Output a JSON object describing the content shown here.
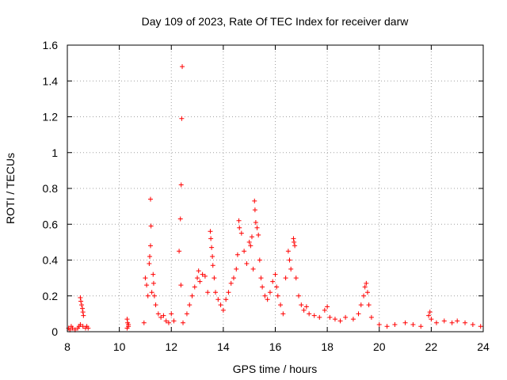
{
  "chart_data": {
    "type": "scatter",
    "title": "Day 109 of 2023, Rate Of TEC Index for receiver darw",
    "xlabel": "GPS time / hours",
    "ylabel": "ROTI / TECUs",
    "xlim": [
      8,
      24
    ],
    "ylim": [
      0,
      1.6
    ],
    "xticks": [
      8,
      10,
      12,
      14,
      16,
      18,
      20,
      22,
      24
    ],
    "xtick_labels": [
      "8",
      "10",
      "12",
      "14",
      "16",
      "18",
      "20",
      "22",
      "24"
    ],
    "yticks": [
      0,
      0.2,
      0.4,
      0.6,
      0.8,
      1.0,
      1.2,
      1.4,
      1.6
    ],
    "ytick_labels": [
      "0",
      "0.2",
      "0.4",
      "0.6",
      "0.8",
      "1",
      "1.2",
      "1.4",
      "1.6"
    ],
    "grid": true,
    "marker": "plus",
    "color": "#ff0000",
    "series": [
      {
        "points": [
          [
            8.05,
            0.02
          ],
          [
            8.1,
            0.01
          ],
          [
            8.15,
            0.03
          ],
          [
            8.2,
            0.02
          ],
          [
            8.3,
            0.01
          ],
          [
            8.4,
            0.02
          ],
          [
            8.45,
            0.03
          ],
          [
            8.5,
            0.19
          ],
          [
            8.52,
            0.17
          ],
          [
            8.55,
            0.15
          ],
          [
            8.58,
            0.13
          ],
          [
            8.6,
            0.11
          ],
          [
            8.62,
            0.09
          ],
          [
            8.5,
            0.04
          ],
          [
            8.6,
            0.03
          ],
          [
            8.7,
            0.02
          ],
          [
            8.75,
            0.03
          ],
          [
            8.8,
            0.02
          ],
          [
            10.3,
            0.07
          ],
          [
            10.32,
            0.05
          ],
          [
            10.35,
            0.04
          ],
          [
            10.3,
            0.02
          ],
          [
            10.35,
            0.03
          ],
          [
            10.95,
            0.05
          ],
          [
            11.0,
            0.3
          ],
          [
            11.05,
            0.26
          ],
          [
            11.1,
            0.2
          ],
          [
            11.15,
            0.38
          ],
          [
            11.17,
            0.42
          ],
          [
            11.2,
            0.48
          ],
          [
            11.22,
            0.59
          ],
          [
            11.2,
            0.74
          ],
          [
            11.25,
            0.22
          ],
          [
            11.3,
            0.32
          ],
          [
            11.32,
            0.27
          ],
          [
            11.35,
            0.2
          ],
          [
            11.4,
            0.15
          ],
          [
            11.5,
            0.1
          ],
          [
            11.6,
            0.08
          ],
          [
            11.7,
            0.09
          ],
          [
            11.8,
            0.06
          ],
          [
            11.9,
            0.05
          ],
          [
            12.0,
            0.1
          ],
          [
            12.1,
            0.06
          ],
          [
            12.3,
            0.45
          ],
          [
            12.35,
            0.63
          ],
          [
            12.38,
            0.82
          ],
          [
            12.4,
            1.19
          ],
          [
            12.42,
            1.48
          ],
          [
            12.37,
            0.26
          ],
          [
            12.45,
            0.05
          ],
          [
            12.6,
            0.1
          ],
          [
            12.7,
            0.15
          ],
          [
            12.8,
            0.2
          ],
          [
            12.9,
            0.25
          ],
          [
            13.0,
            0.3
          ],
          [
            13.05,
            0.34
          ],
          [
            13.1,
            0.28
          ],
          [
            13.2,
            0.32
          ],
          [
            13.3,
            0.31
          ],
          [
            13.4,
            0.22
          ],
          [
            13.5,
            0.56
          ],
          [
            13.52,
            0.52
          ],
          [
            13.55,
            0.47
          ],
          [
            13.58,
            0.42
          ],
          [
            13.6,
            0.37
          ],
          [
            13.65,
            0.3
          ],
          [
            13.7,
            0.22
          ],
          [
            13.8,
            0.18
          ],
          [
            13.9,
            0.15
          ],
          [
            14.0,
            0.12
          ],
          [
            14.1,
            0.18
          ],
          [
            14.2,
            0.22
          ],
          [
            14.3,
            0.27
          ],
          [
            14.4,
            0.3
          ],
          [
            14.5,
            0.35
          ],
          [
            14.55,
            0.43
          ],
          [
            14.6,
            0.62
          ],
          [
            14.62,
            0.58
          ],
          [
            14.7,
            0.55
          ],
          [
            14.8,
            0.45
          ],
          [
            14.9,
            0.38
          ],
          [
            15.0,
            0.5
          ],
          [
            15.05,
            0.48
          ],
          [
            15.1,
            0.53
          ],
          [
            15.15,
            0.35
          ],
          [
            15.2,
            0.73
          ],
          [
            15.22,
            0.68
          ],
          [
            15.25,
            0.61
          ],
          [
            15.3,
            0.58
          ],
          [
            15.35,
            0.54
          ],
          [
            15.4,
            0.4
          ],
          [
            15.45,
            0.3
          ],
          [
            15.5,
            0.25
          ],
          [
            15.6,
            0.2
          ],
          [
            15.7,
            0.18
          ],
          [
            15.8,
            0.22
          ],
          [
            15.9,
            0.28
          ],
          [
            16.0,
            0.32
          ],
          [
            16.05,
            0.25
          ],
          [
            16.1,
            0.2
          ],
          [
            16.2,
            0.15
          ],
          [
            16.3,
            0.1
          ],
          [
            16.4,
            0.3
          ],
          [
            16.5,
            0.45
          ],
          [
            16.55,
            0.4
          ],
          [
            16.6,
            0.35
          ],
          [
            16.7,
            0.52
          ],
          [
            16.72,
            0.5
          ],
          [
            16.75,
            0.48
          ],
          [
            16.8,
            0.3
          ],
          [
            16.9,
            0.2
          ],
          [
            17.0,
            0.15
          ],
          [
            17.1,
            0.12
          ],
          [
            17.2,
            0.14
          ],
          [
            17.3,
            0.1
          ],
          [
            17.5,
            0.09
          ],
          [
            17.7,
            0.08
          ],
          [
            17.9,
            0.12
          ],
          [
            18.0,
            0.14
          ],
          [
            18.1,
            0.08
          ],
          [
            18.3,
            0.07
          ],
          [
            18.5,
            0.06
          ],
          [
            18.7,
            0.08
          ],
          [
            19.0,
            0.07
          ],
          [
            19.2,
            0.1
          ],
          [
            19.3,
            0.15
          ],
          [
            19.4,
            0.2
          ],
          [
            19.45,
            0.25
          ],
          [
            19.5,
            0.27
          ],
          [
            19.55,
            0.22
          ],
          [
            19.6,
            0.15
          ],
          [
            19.7,
            0.08
          ],
          [
            20.0,
            0.04
          ],
          [
            20.3,
            0.03
          ],
          [
            20.6,
            0.04
          ],
          [
            21.0,
            0.05
          ],
          [
            21.3,
            0.04
          ],
          [
            21.6,
            0.03
          ],
          [
            21.9,
            0.09
          ],
          [
            21.95,
            0.11
          ],
          [
            22.0,
            0.07
          ],
          [
            22.2,
            0.05
          ],
          [
            22.5,
            0.06
          ],
          [
            22.8,
            0.05
          ],
          [
            23.0,
            0.06
          ],
          [
            23.3,
            0.05
          ],
          [
            23.6,
            0.04
          ],
          [
            23.9,
            0.03
          ]
        ]
      }
    ]
  }
}
